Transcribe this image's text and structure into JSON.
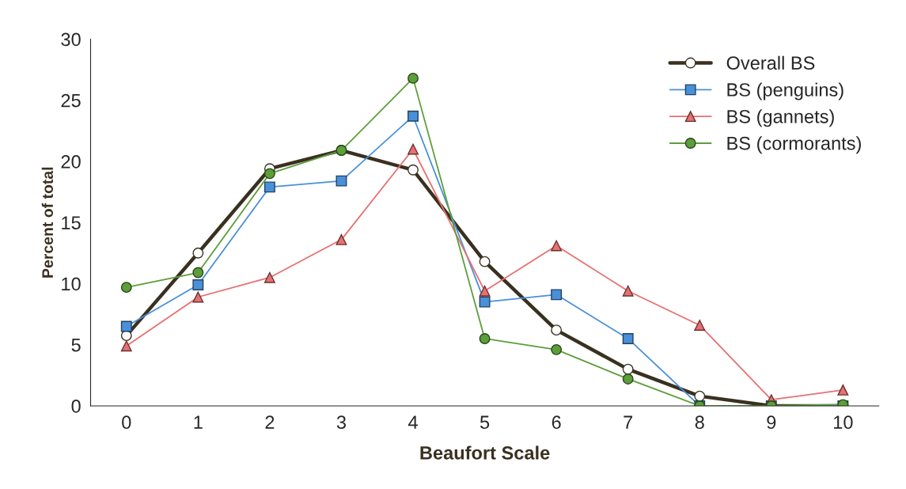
{
  "chart_data": {
    "type": "line",
    "xlabel": "Beaufort Scale",
    "ylabel": "Percent of total",
    "categories": [
      "0",
      "1",
      "2",
      "3",
      "4",
      "5",
      "6",
      "7",
      "8",
      "9",
      "10"
    ],
    "series": [
      {
        "name": "Overall BS",
        "color": "#3a3020",
        "marker": "circle",
        "values": [
          5.75,
          12.5,
          19.4,
          20.9,
          19.3,
          11.8,
          6.2,
          3.0,
          0.8,
          0,
          0
        ]
      },
      {
        "name": "BS (penguins)",
        "color": "#4a90d9",
        "marker": "square",
        "values": [
          6.5,
          9.9,
          17.9,
          18.4,
          23.7,
          8.5,
          9.1,
          5.5,
          0,
          0,
          0
        ]
      },
      {
        "name": "BS (gannets)",
        "color": "#e87070",
        "marker": "triangle",
        "values": [
          4.9,
          8.9,
          10.5,
          13.6,
          21.0,
          9.4,
          13.1,
          9.4,
          6.6,
          0.5,
          1.3
        ]
      },
      {
        "name": "BS (cormorants)",
        "color": "#5c9e3a",
        "marker": "circle",
        "values": [
          9.7,
          10.9,
          19.0,
          20.9,
          26.8,
          5.5,
          4.6,
          2.2,
          0,
          0,
          0.1
        ]
      }
    ],
    "ylim": [
      0,
      30
    ],
    "yticks": [
      0,
      5,
      10,
      15,
      20,
      25,
      30
    ],
    "grid": false,
    "legend": "top right"
  }
}
